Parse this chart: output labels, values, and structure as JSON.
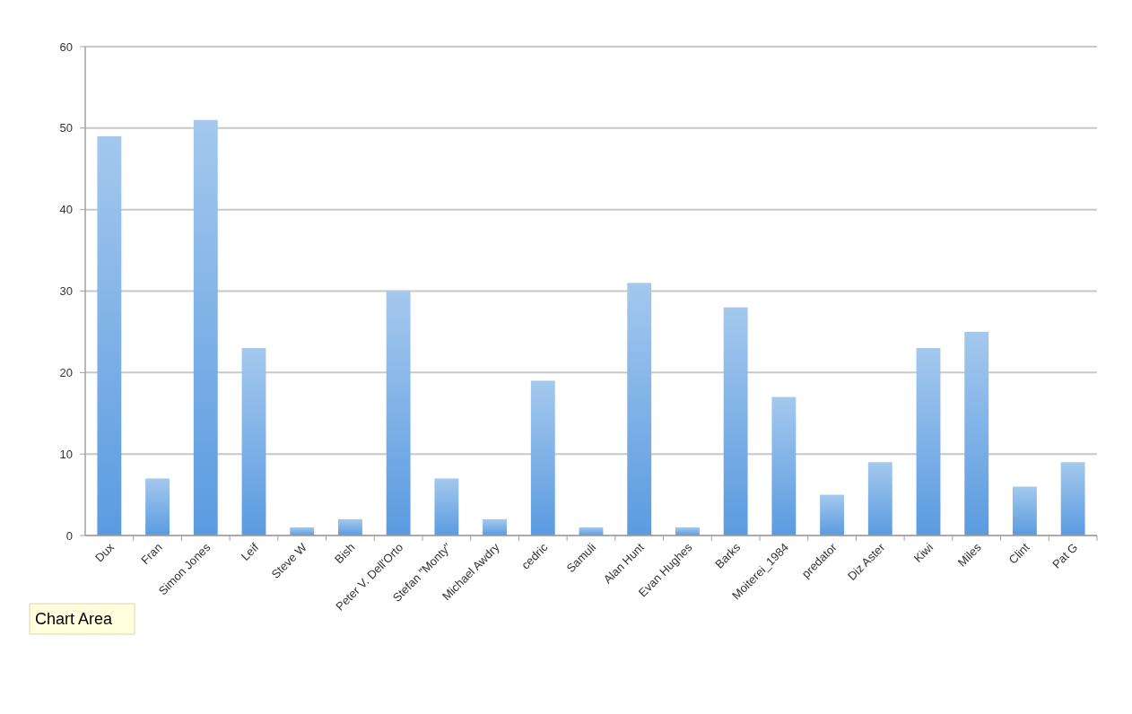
{
  "chart_data": {
    "type": "bar",
    "categories": [
      "Dux",
      "Fran",
      "Simon Jones",
      "Leif",
      "Steve W",
      "Bish",
      "Peter V. Dell'Orto",
      "Stefan \"Monty\"",
      "Michael Awdry",
      "cedric",
      "Samuli",
      "Alan Hunt",
      "Evan Hughes",
      "Barks",
      "Moiterei_1984",
      "predator",
      "Diz Aster",
      "Kiwi",
      "Miles",
      "Clint",
      "Pat G"
    ],
    "values": [
      49,
      7,
      51,
      23,
      1,
      2,
      30,
      7,
      2,
      19,
      1,
      31,
      1,
      28,
      17,
      5,
      9,
      23,
      25,
      6,
      9
    ],
    "color": "#5a9be0",
    "ylim": [
      0,
      60
    ],
    "yticks": [
      0,
      10,
      20,
      30,
      40,
      50,
      60
    ],
    "grid": "y",
    "annotations": [
      "Chart Area"
    ]
  }
}
